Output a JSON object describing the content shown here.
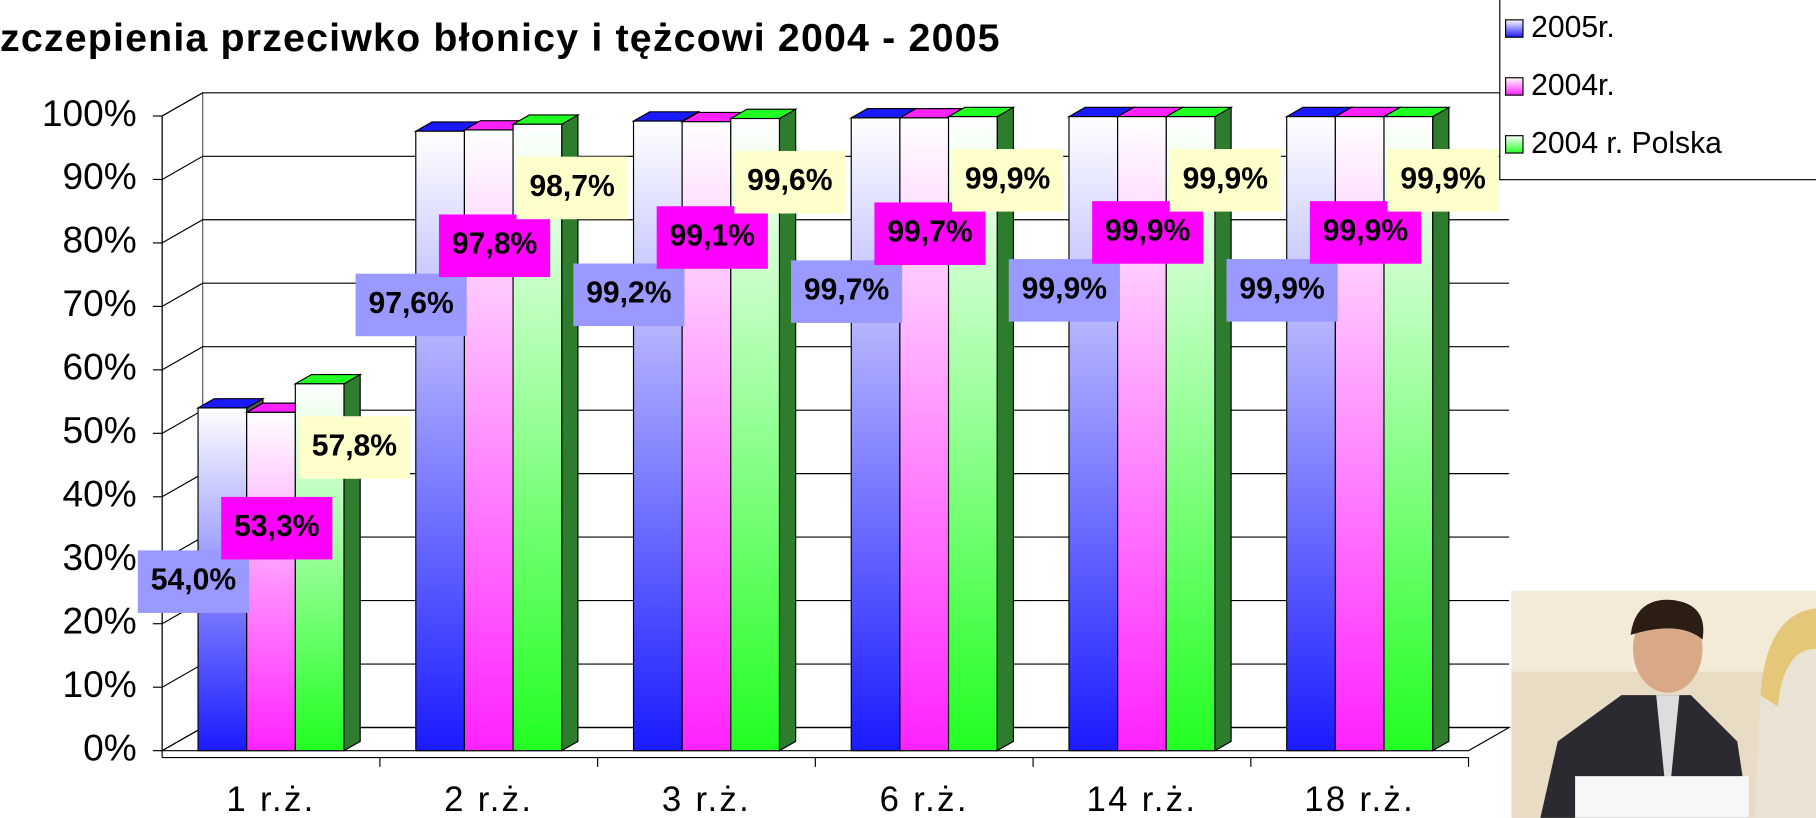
{
  "chart_data": {
    "type": "bar3d",
    "title": "zczepienia przeciwko błonicy i tężcowi 2004 - 2005",
    "categories": [
      "1 r.ż.",
      "2 r.ż.",
      "3 r.ż.",
      "6 r.ż.",
      "14 r.ż.",
      "18 r.ż."
    ],
    "series": [
      {
        "name": "2005r.",
        "color": "#1a1aff",
        "label_color": "#9999ff",
        "values": [
          54.0,
          97.6,
          99.2,
          99.7,
          99.9,
          99.9
        ],
        "value_labels": [
          "54,0%",
          "97,6%",
          "99,2%",
          "99,7%",
          "99,9%",
          "99,9%"
        ]
      },
      {
        "name": "2004r.",
        "color": "#ff22ff",
        "label_color": "#ff00ff",
        "values": [
          53.3,
          97.8,
          99.1,
          99.7,
          99.9,
          99.9
        ],
        "value_labels": [
          "53,3%",
          "97,8%",
          "99,1%",
          "99,7%",
          "99,9%",
          "99,9%"
        ]
      },
      {
        "name": "2004 r. Polska",
        "color": "#22ff22",
        "label_color": "#ffffcc",
        "values": [
          57.8,
          98.7,
          99.6,
          99.9,
          99.9,
          99.9
        ],
        "value_labels": [
          "57,8%",
          "98,7%",
          "99,6%",
          "99,9%",
          "99,9%",
          "99,9%"
        ]
      }
    ],
    "ylim": [
      0,
      100
    ],
    "yticks": [
      {
        "value": 0,
        "label": "0%"
      },
      {
        "value": 10,
        "label": "10%"
      },
      {
        "value": 20,
        "label": "20%"
      },
      {
        "value": 30,
        "label": "30%"
      },
      {
        "value": 40,
        "label": "40%"
      },
      {
        "value": 50,
        "label": "50%"
      },
      {
        "value": 60,
        "label": "60%"
      },
      {
        "value": 70,
        "label": "70%"
      },
      {
        "value": 80,
        "label": "80%"
      },
      {
        "value": 90,
        "label": "90%"
      },
      {
        "value": 100,
        "label": "100%"
      }
    ],
    "grid": true
  }
}
